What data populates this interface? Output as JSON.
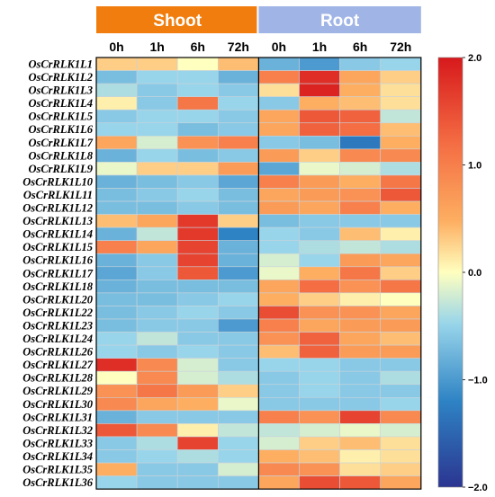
{
  "chart_data": {
    "type": "heatmap",
    "groups": [
      {
        "label": "Shoot",
        "color": "#f07d0e",
        "columns": [
          "0h",
          "1h",
          "6h",
          "72h"
        ]
      },
      {
        "label": "Root",
        "color": "#a0b4e6",
        "columns": [
          "0h",
          "1h",
          "6h",
          "72h"
        ]
      }
    ],
    "columns": [
      "0h",
      "1h",
      "6h",
      "72h",
      "0h",
      "1h",
      "6h",
      "72h"
    ],
    "rows": [
      "OsCrRLK1L1",
      "OsCrRLK1L2",
      "OsCrRLK1L3",
      "OsCrRLK1L4",
      "OsCrRLK1L5",
      "OsCrRLK1L6",
      "OsCrRLK1L7",
      "OsCrRLK1L8",
      "OsCrRLK1L9",
      "OsCrRLK1L10",
      "OsCrRLK1L11",
      "OsCrRLK1L12",
      "OsCrRLK1L13",
      "OsCrRLK1L14",
      "OsCrRLK1L15",
      "OsCrRLK1L16",
      "OsCrRLK1L17",
      "OsCrRLK1L18",
      "OsCrRLK1L20",
      "OsCrRLK1L22",
      "OsCrRLK1L23",
      "OsCrRLK1L24",
      "OsCrRLK1L26",
      "OsCrRLK1L27",
      "OsCrRLK1L28",
      "OsCrRLK1L29",
      "OsCrRLK1L30",
      "OsCrRLK1L31",
      "OsCrRLK1L32",
      "OsCrRLK1L33",
      "OsCrRLK1L34",
      "OsCrRLK1L35",
      "OsCrRLK1L36"
    ],
    "values": [
      [
        0.3,
        0.3,
        0.0,
        0.4,
        -0.8,
        -1.0,
        -0.6,
        -0.5
      ],
      [
        -0.7,
        -0.5,
        -0.5,
        -0.8,
        1.0,
        1.8,
        0.6,
        0.3
      ],
      [
        -0.4,
        -0.6,
        -0.5,
        -0.6,
        0.2,
        1.9,
        0.5,
        0.2
      ],
      [
        0.1,
        -0.6,
        1.1,
        -0.5,
        -0.6,
        0.5,
        0.4,
        0.2
      ],
      [
        -0.6,
        -0.5,
        -0.5,
        -0.6,
        0.6,
        1.4,
        1.3,
        -0.3
      ],
      [
        -0.5,
        -0.5,
        -0.7,
        -0.6,
        0.6,
        1.3,
        1.2,
        0.4
      ],
      [
        0.6,
        -0.2,
        0.8,
        1.0,
        -0.6,
        -0.7,
        -1.3,
        0.5
      ],
      [
        -0.8,
        -0.5,
        -0.7,
        -0.6,
        0.7,
        0.3,
        0.9,
        0.9
      ],
      [
        -0.1,
        0.3,
        0.3,
        0.7,
        -0.9,
        -0.1,
        -0.2,
        -0.4
      ],
      [
        -0.8,
        -0.7,
        -0.6,
        -0.9,
        1.0,
        0.7,
        0.5,
        1.1
      ],
      [
        -0.7,
        -0.6,
        -0.5,
        -0.7,
        0.6,
        0.7,
        0.8,
        1.4
      ],
      [
        -0.7,
        -0.7,
        -0.6,
        -0.7,
        0.7,
        0.6,
        1.0,
        0.5
      ],
      [
        0.4,
        0.6,
        1.7,
        0.3,
        -0.7,
        -0.6,
        -0.6,
        -0.6
      ],
      [
        -0.8,
        -0.3,
        1.7,
        -1.2,
        -0.5,
        -0.6,
        0.4,
        0.1
      ],
      [
        1.0,
        0.6,
        1.6,
        -0.8,
        -0.5,
        -0.4,
        -0.3,
        -0.4
      ],
      [
        -0.8,
        -0.6,
        1.6,
        -0.8,
        -0.2,
        -0.5,
        0.7,
        0.6
      ],
      [
        -0.9,
        -0.6,
        1.4,
        -1.0,
        -0.1,
        0.5,
        1.1,
        0.3
      ],
      [
        -0.8,
        -0.7,
        -0.7,
        -0.7,
        0.6,
        1.2,
        0.8,
        1.1
      ],
      [
        -0.7,
        -0.7,
        -0.6,
        -0.5,
        0.5,
        0.3,
        0.1,
        0.0
      ],
      [
        -0.7,
        -0.6,
        -0.5,
        -0.6,
        1.5,
        0.8,
        0.8,
        0.6
      ],
      [
        -0.7,
        -0.6,
        -0.6,
        -1.0,
        1.0,
        0.6,
        0.7,
        0.7
      ],
      [
        -0.5,
        -0.3,
        -0.6,
        -0.6,
        0.8,
        1.3,
        0.6,
        0.4
      ],
      [
        -0.5,
        -0.6,
        -0.5,
        -0.6,
        0.4,
        1.3,
        0.7,
        0.7
      ],
      [
        1.8,
        0.9,
        -0.2,
        -0.6,
        -0.5,
        -0.5,
        -0.6,
        -0.6
      ],
      [
        0.0,
        0.9,
        -0.2,
        -0.4,
        -0.6,
        -0.5,
        -0.6,
        -0.4
      ],
      [
        0.8,
        1.1,
        0.7,
        0.3,
        -0.6,
        -0.5,
        -0.6,
        -0.6
      ],
      [
        0.9,
        0.6,
        0.5,
        -0.1,
        -0.6,
        -0.6,
        -0.6,
        -0.5
      ],
      [
        -0.8,
        -0.6,
        -0.6,
        -0.6,
        1.0,
        0.8,
        1.6,
        0.9
      ],
      [
        1.4,
        0.9,
        0.1,
        -0.3,
        -0.3,
        -0.2,
        -0.1,
        -0.2
      ],
      [
        -0.6,
        -0.4,
        1.6,
        -0.5,
        -0.2,
        0.3,
        0.4,
        0.2
      ],
      [
        -0.6,
        -0.5,
        -0.4,
        -0.5,
        0.5,
        0.4,
        0.1,
        0.2
      ],
      [
        0.5,
        -0.6,
        -0.6,
        -0.2,
        0.9,
        0.8,
        0.2,
        0.3
      ],
      [
        -0.5,
        -0.6,
        -0.6,
        -0.6,
        0.6,
        1.5,
        1.4,
        0.6
      ]
    ],
    "colorbar": {
      "ticks": [
        2.0,
        1.0,
        0.0,
        -1.0,
        -2.0
      ],
      "tick_labels": [
        "2.0",
        "1.0",
        "0.0",
        "−1.0",
        "−2.0"
      ],
      "range": [
        -2.0,
        2.0
      ]
    },
    "colormap": {
      "low": "#2b3591",
      "low_mid": "#2e83c4",
      "mid_low": "#98d5ea",
      "mid": "#ffffbf",
      "mid_high": "#fdae61",
      "high_mid": "#f46d43",
      "high": "#d7191c"
    }
  }
}
